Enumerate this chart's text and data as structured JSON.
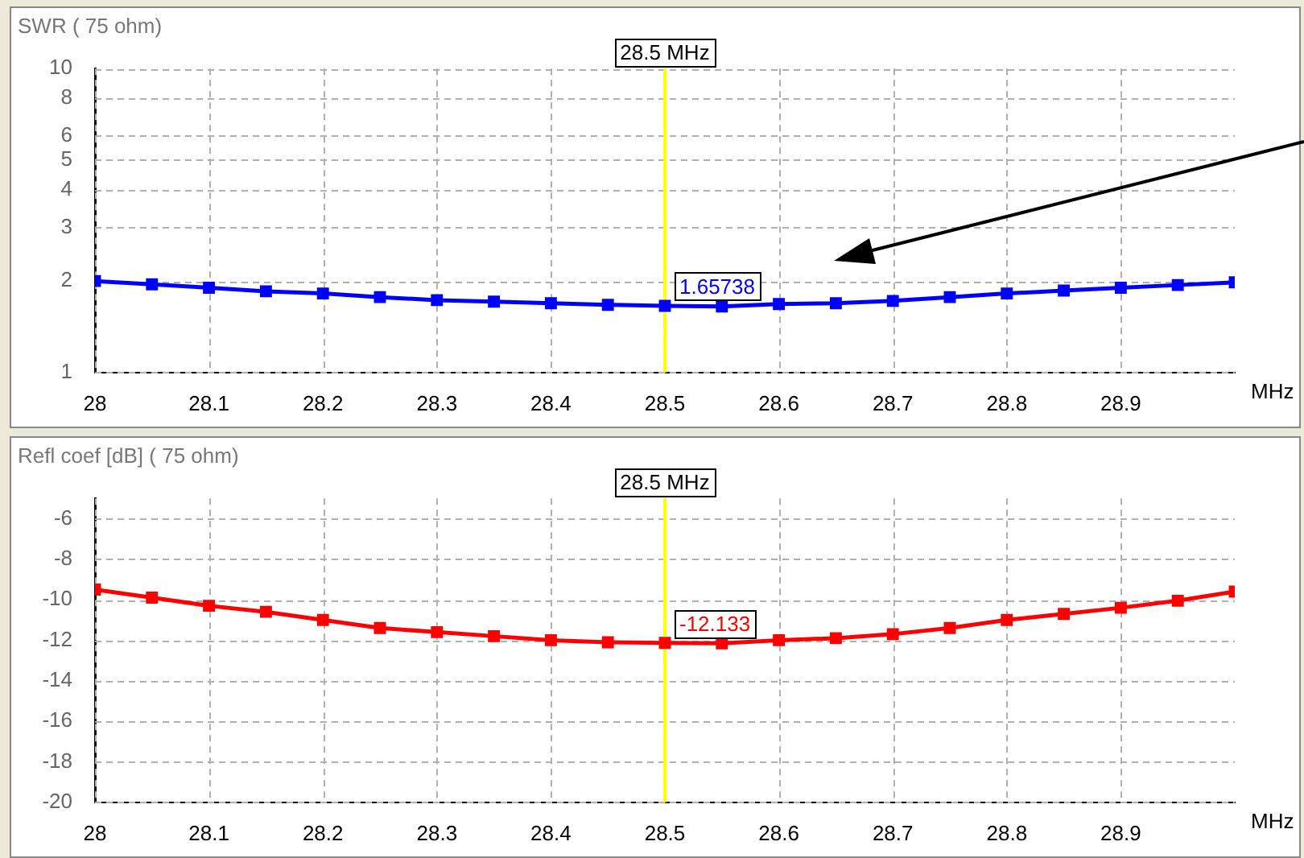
{
  "chart_data": [
    {
      "type": "line",
      "title": "SWR ( 75 ohm)",
      "xlabel": "MHz",
      "x": [
        28,
        28.05,
        28.1,
        28.15,
        28.2,
        28.25,
        28.3,
        28.35,
        28.4,
        28.45,
        28.5,
        28.55,
        28.6,
        28.65,
        28.7,
        28.75,
        28.8,
        28.85,
        28.9,
        28.95,
        29
      ],
      "xlim": [
        28,
        29
      ],
      "xticks": [
        28,
        28.1,
        28.2,
        28.3,
        28.4,
        28.5,
        28.6,
        28.7,
        28.8,
        28.9
      ],
      "ylim": [
        1,
        10
      ],
      "yticks": [
        1,
        2,
        3,
        4,
        5,
        6,
        8,
        10
      ],
      "log": true,
      "grid": true,
      "marker": "square",
      "series": [
        {
          "color": "#0000ff",
          "values": [
            2.0,
            1.95,
            1.9,
            1.85,
            1.82,
            1.77,
            1.73,
            1.71,
            1.69,
            1.67,
            1.657,
            1.65,
            1.68,
            1.69,
            1.72,
            1.77,
            1.82,
            1.86,
            1.9,
            1.94,
            1.98
          ]
        }
      ],
      "ref_lines": [
        {
          "axis": "x",
          "value": 28.5,
          "label": "28.5 MHz",
          "color": "#ffff00"
        }
      ],
      "annotations": [
        {
          "text": "1.65738",
          "x": 28.5,
          "y": 1.65738
        }
      ]
    },
    {
      "type": "line",
      "title": "Refl coef [dB] ( 75 ohm)",
      "xlabel": "MHz",
      "x": [
        28,
        28.05,
        28.1,
        28.15,
        28.2,
        28.25,
        28.3,
        28.35,
        28.4,
        28.45,
        28.5,
        28.55,
        28.6,
        28.65,
        28.7,
        28.75,
        28.8,
        28.85,
        28.9,
        28.95,
        29
      ],
      "xlim": [
        28,
        29
      ],
      "xticks": [
        28,
        28.1,
        28.2,
        28.3,
        28.4,
        28.5,
        28.6,
        28.7,
        28.8,
        28.9
      ],
      "ylim": [
        -20,
        -5
      ],
      "yticks": [
        -6,
        -8,
        -10,
        -12,
        -14,
        -16,
        -18,
        -20
      ],
      "grid": true,
      "marker": "square",
      "series": [
        {
          "color": "#ff0000",
          "values": [
            -9.5,
            -9.9,
            -10.3,
            -10.6,
            -11.0,
            -11.4,
            -11.6,
            -11.8,
            -12.0,
            -12.1,
            -12.133,
            -12.15,
            -12.0,
            -11.9,
            -11.7,
            -11.4,
            -11.0,
            -10.7,
            -10.4,
            -10.05,
            -9.6
          ]
        }
      ],
      "ref_lines": [
        {
          "axis": "x",
          "value": 28.5,
          "label": "28.5 MHz",
          "color": "#ffff00"
        }
      ],
      "annotations": [
        {
          "text": "-12.133",
          "x": 28.5,
          "y": -12.133
        }
      ]
    }
  ]
}
